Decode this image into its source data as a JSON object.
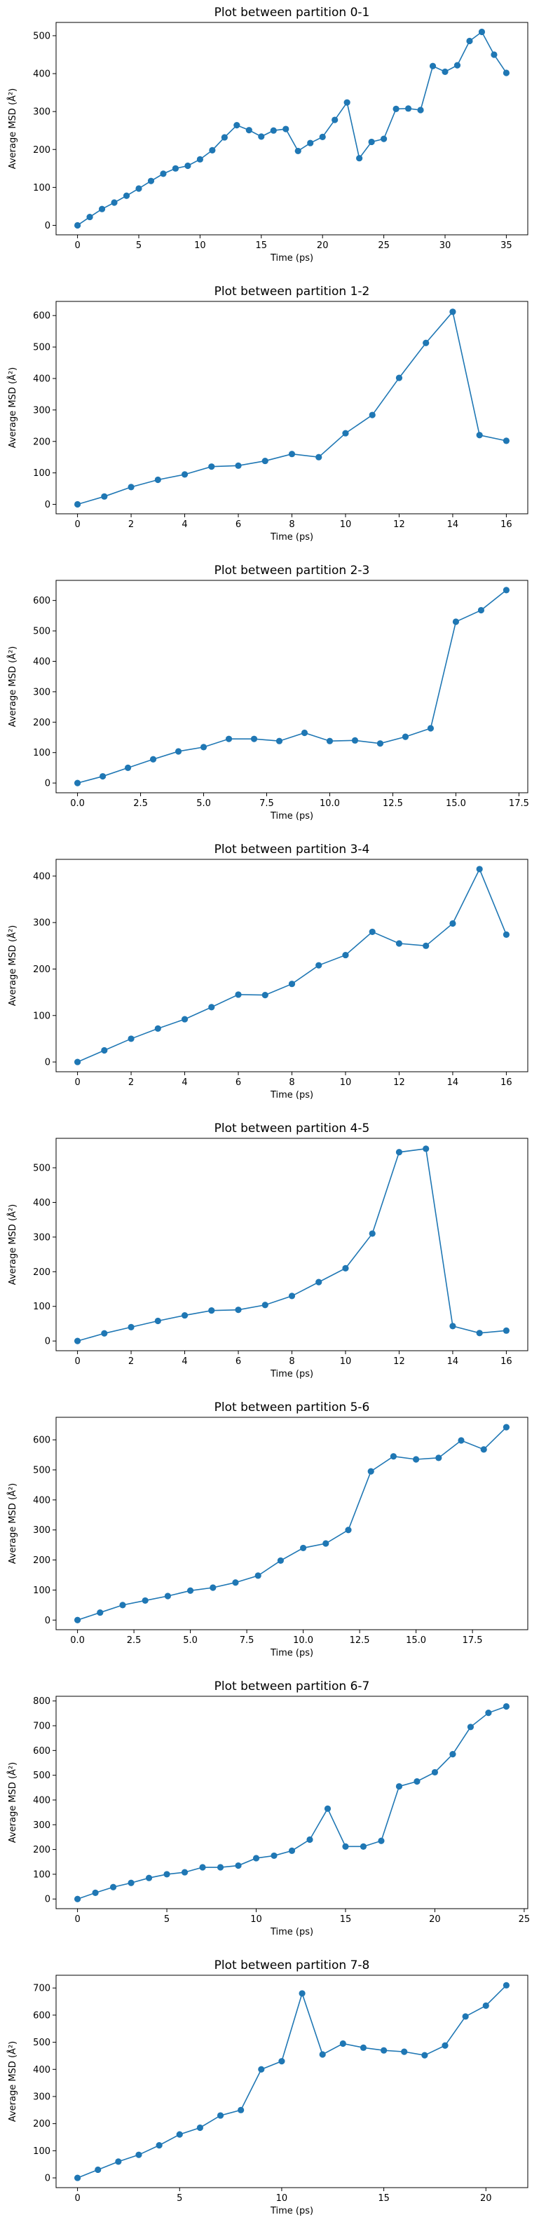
{
  "chart_data": [
    {
      "type": "line",
      "title": "Plot between partition 0-1",
      "xlabel": "Time (ps)",
      "ylabel": "Average MSD (Å²)",
      "xlim": [
        -1.75,
        36.75
      ],
      "ylim": [
        -25,
        535
      ],
      "xticks": [
        "0",
        "5",
        "10",
        "15",
        "20",
        "25",
        "30",
        "35"
      ],
      "xtick_values": [
        0,
        5,
        10,
        15,
        20,
        25,
        30,
        35
      ],
      "yticks": [
        "0",
        "100",
        "200",
        "300",
        "400",
        "500"
      ],
      "ytick_values": [
        0,
        100,
        200,
        300,
        400,
        500
      ],
      "color": "#1f77b4",
      "grid": false,
      "series": [
        {
          "x": [
            0,
            1,
            2,
            3,
            4,
            5,
            6,
            7,
            8,
            9,
            10,
            11,
            12,
            13,
            14,
            15,
            16,
            17,
            18,
            19,
            20,
            21,
            22,
            23,
            24,
            25,
            26,
            27,
            28,
            29,
            30,
            31,
            32,
            33,
            34,
            35
          ],
          "y": [
            0,
            22,
            43,
            60,
            78,
            97,
            117,
            136,
            150,
            157,
            174,
            198,
            232,
            264,
            251,
            234,
            250,
            254,
            196,
            217,
            233,
            278,
            324,
            177,
            220,
            228,
            307,
            308,
            304,
            420,
            405,
            422,
            486,
            510,
            450,
            402
          ]
        }
      ]
    },
    {
      "type": "line",
      "title": "Plot between partition 1-2",
      "xlabel": "Time (ps)",
      "ylabel": "Average MSD (Å²)",
      "xlim": [
        -0.8,
        16.8
      ],
      "ylim": [
        -30,
        645
      ],
      "xticks": [
        "0",
        "2",
        "4",
        "6",
        "8",
        "10",
        "12",
        "14",
        "16"
      ],
      "xtick_values": [
        0,
        2,
        4,
        6,
        8,
        10,
        12,
        14,
        16
      ],
      "yticks": [
        "0",
        "100",
        "200",
        "300",
        "400",
        "500",
        "600"
      ],
      "ytick_values": [
        0,
        100,
        200,
        300,
        400,
        500,
        600
      ],
      "color": "#1f77b4",
      "grid": false,
      "series": [
        {
          "x": [
            0,
            1,
            2,
            3,
            4,
            5,
            6,
            7,
            8,
            9,
            10,
            11,
            12,
            13,
            14,
            15,
            16
          ],
          "y": [
            0,
            25,
            55,
            78,
            95,
            120,
            123,
            138,
            160,
            150,
            226,
            284,
            402,
            513,
            612,
            220,
            202
          ]
        }
      ]
    },
    {
      "type": "line",
      "title": "Plot between partition 2-3",
      "xlabel": "Time (ps)",
      "ylabel": "Average MSD (Å²)",
      "xlim": [
        -0.85,
        17.85
      ],
      "ylim": [
        -32,
        666
      ],
      "xticks": [
        "0.0",
        "2.5",
        "5.0",
        "7.5",
        "10.0",
        "12.5",
        "15.0",
        "17.5"
      ],
      "xtick_values": [
        0,
        2.5,
        5,
        7.5,
        10,
        12.5,
        15,
        17.5
      ],
      "yticks": [
        "0",
        "100",
        "200",
        "300",
        "400",
        "500",
        "600"
      ],
      "ytick_values": [
        0,
        100,
        200,
        300,
        400,
        500,
        600
      ],
      "color": "#1f77b4",
      "grid": false,
      "series": [
        {
          "x": [
            0,
            1,
            2,
            3,
            4,
            5,
            6,
            7,
            8,
            9,
            10,
            11,
            12,
            13,
            14,
            15,
            16,
            17
          ],
          "y": [
            0,
            22,
            50,
            78,
            104,
            118,
            145,
            145,
            138,
            165,
            138,
            140,
            130,
            152,
            180,
            530,
            568,
            634
          ]
        }
      ]
    },
    {
      "type": "line",
      "title": "Plot between partition 3-4",
      "xlabel": "Time (ps)",
      "ylabel": "Average MSD (Å²)",
      "xlim": [
        -0.8,
        16.8
      ],
      "ylim": [
        -21,
        436
      ],
      "xticks": [
        "0",
        "2",
        "4",
        "6",
        "8",
        "10",
        "12",
        "14",
        "16"
      ],
      "xtick_values": [
        0,
        2,
        4,
        6,
        8,
        10,
        12,
        14,
        16
      ],
      "yticks": [
        "0",
        "100",
        "200",
        "300",
        "400"
      ],
      "ytick_values": [
        0,
        100,
        200,
        300,
        400
      ],
      "color": "#1f77b4",
      "grid": false,
      "series": [
        {
          "x": [
            0,
            1,
            2,
            3,
            4,
            5,
            6,
            7,
            8,
            9,
            10,
            11,
            12,
            13,
            14,
            15,
            16
          ],
          "y": [
            0,
            25,
            50,
            72,
            92,
            118,
            145,
            144,
            168,
            208,
            230,
            280,
            255,
            250,
            298,
            415,
            274
          ]
        }
      ]
    },
    {
      "type": "line",
      "title": "Plot between partition 4-5",
      "xlabel": "Time (ps)",
      "ylabel": "Average MSD (Å²)",
      "xlim": [
        -0.8,
        16.8
      ],
      "ylim": [
        -28,
        585
      ],
      "xticks": [
        "0",
        "2",
        "4",
        "6",
        "8",
        "10",
        "12",
        "14",
        "16"
      ],
      "xtick_values": [
        0,
        2,
        4,
        6,
        8,
        10,
        12,
        14,
        16
      ],
      "yticks": [
        "0",
        "100",
        "200",
        "300",
        "400",
        "500"
      ],
      "ytick_values": [
        0,
        100,
        200,
        300,
        400,
        500
      ],
      "color": "#1f77b4",
      "grid": false,
      "series": [
        {
          "x": [
            0,
            1,
            2,
            3,
            4,
            5,
            6,
            7,
            8,
            9,
            10,
            11,
            12,
            13,
            14,
            15,
            16
          ],
          "y": [
            0,
            22,
            40,
            58,
            74,
            88,
            90,
            104,
            130,
            170,
            210,
            310,
            545,
            555,
            43,
            23,
            30
          ]
        }
      ]
    },
    {
      "type": "line",
      "title": "Plot between partition 5-6",
      "xlabel": "Time (ps)",
      "ylabel": "Average MSD (Å²)",
      "xlim": [
        -0.95,
        19.95
      ],
      "ylim": [
        -32,
        675
      ],
      "xticks": [
        "0.0",
        "2.5",
        "5.0",
        "7.5",
        "10.0",
        "12.5",
        "15.0",
        "17.5"
      ],
      "xtick_values": [
        0,
        2.5,
        5,
        7.5,
        10,
        12.5,
        15,
        17.5
      ],
      "yticks": [
        "0",
        "100",
        "200",
        "300",
        "400",
        "500",
        "600"
      ],
      "ytick_values": [
        0,
        100,
        200,
        300,
        400,
        500,
        600
      ],
      "color": "#1f77b4",
      "grid": false,
      "series": [
        {
          "x": [
            0,
            1,
            2,
            3,
            4,
            5,
            6,
            7,
            8,
            9,
            10,
            11,
            12,
            13,
            14,
            15,
            16,
            17,
            18,
            19
          ],
          "y": [
            0,
            25,
            50,
            65,
            80,
            98,
            108,
            125,
            148,
            198,
            240,
            255,
            300,
            495,
            545,
            535,
            540,
            598,
            568,
            642
          ]
        }
      ]
    },
    {
      "type": "line",
      "title": "Plot between partition 6-7",
      "xlabel": "Time (ps)",
      "ylabel": "Average MSD (Å²)",
      "xlim": [
        -1.2,
        25.2
      ],
      "ylim": [
        -39,
        819
      ],
      "xticks": [
        "0",
        "5",
        "10",
        "15",
        "20",
        "25"
      ],
      "xtick_values": [
        0,
        5,
        10,
        15,
        20,
        25
      ],
      "yticks": [
        "0",
        "100",
        "200",
        "300",
        "400",
        "500",
        "600",
        "700",
        "800"
      ],
      "ytick_values": [
        0,
        100,
        200,
        300,
        400,
        500,
        600,
        700,
        800
      ],
      "color": "#1f77b4",
      "grid": false,
      "series": [
        {
          "x": [
            0,
            1,
            2,
            3,
            4,
            5,
            6,
            7,
            8,
            9,
            10,
            11,
            12,
            13,
            14,
            15,
            16,
            17,
            18,
            19,
            20,
            21,
            22,
            23,
            24
          ],
          "y": [
            0,
            25,
            48,
            65,
            85,
            100,
            108,
            128,
            128,
            135,
            165,
            175,
            195,
            240,
            365,
            212,
            212,
            235,
            455,
            475,
            512,
            585,
            695,
            752,
            778
          ]
        }
      ]
    },
    {
      "type": "line",
      "title": "Plot between partition 7-8",
      "xlabel": "Time (ps)",
      "ylabel": "Average MSD (Å²)",
      "xlim": [
        -1.05,
        22.05
      ],
      "ylim": [
        -36,
        747
      ],
      "xticks": [
        "0",
        "5",
        "10",
        "15",
        "20"
      ],
      "xtick_values": [
        0,
        5,
        10,
        15,
        20
      ],
      "yticks": [
        "0",
        "100",
        "200",
        "300",
        "400",
        "500",
        "600",
        "700"
      ],
      "ytick_values": [
        0,
        100,
        200,
        300,
        400,
        500,
        600,
        700
      ],
      "color": "#1f77b4",
      "grid": false,
      "series": [
        {
          "x": [
            0,
            1,
            2,
            3,
            4,
            5,
            6,
            7,
            8,
            9,
            10,
            11,
            12,
            13,
            14,
            15,
            16,
            17,
            18,
            19,
            20,
            21
          ],
          "y": [
            0,
            30,
            60,
            85,
            120,
            160,
            185,
            230,
            250,
            400,
            430,
            680,
            455,
            495,
            480,
            470,
            465,
            452,
            488,
            595,
            635,
            710
          ]
        }
      ]
    }
  ]
}
